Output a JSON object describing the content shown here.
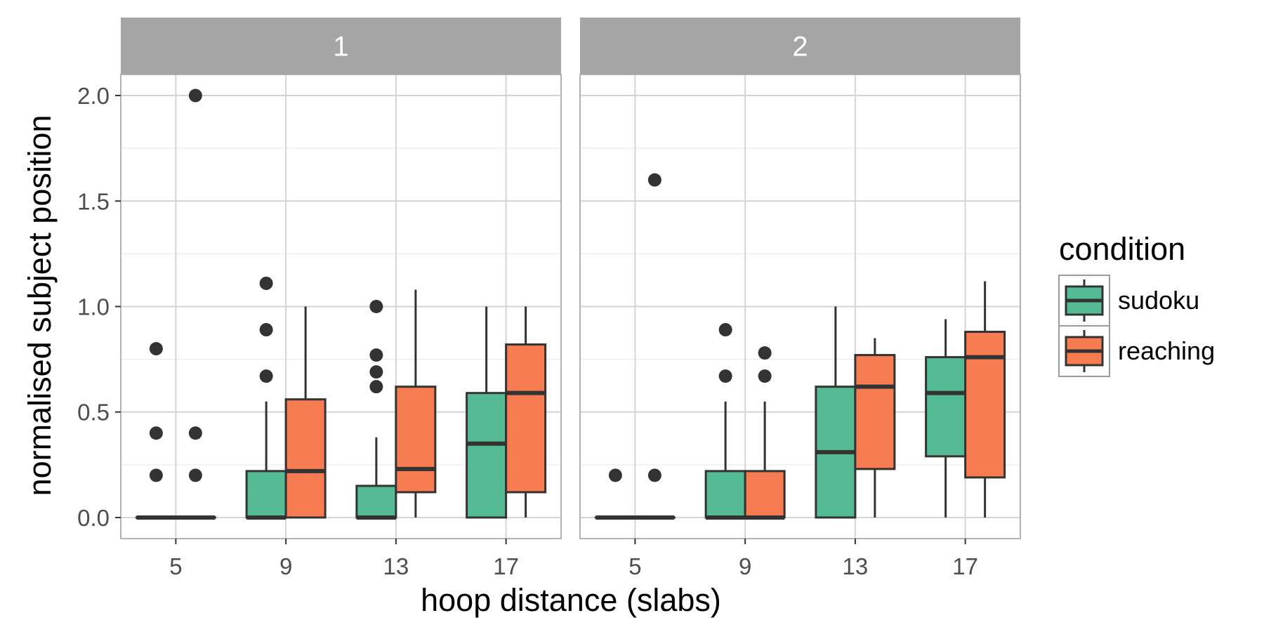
{
  "chart_data": {
    "type": "boxplot",
    "xlabel": "hoop distance (slabs)",
    "ylabel": "normalised subject position",
    "ylim": [
      -0.1,
      2.1
    ],
    "y_ticks": [
      "0.0",
      "0.5",
      "1.0",
      "1.5",
      "2.0"
    ],
    "categories": [
      "5",
      "9",
      "13",
      "17"
    ],
    "grid": true,
    "legend": {
      "title": "condition",
      "position": "right",
      "entries": [
        {
          "name": "sudoku",
          "color": "#55bb95"
        },
        {
          "name": "reaching",
          "color": "#f87c51"
        }
      ]
    },
    "facets": [
      {
        "label": "1",
        "boxes": [
          {
            "category": "5",
            "series": "sudoku",
            "lower_whisker": 0,
            "q1": 0,
            "median": 0,
            "q3": 0,
            "upper_whisker": 0,
            "outliers": [
              0.8,
              0.4,
              0.2
            ]
          },
          {
            "category": "5",
            "series": "reaching",
            "lower_whisker": 0,
            "q1": 0,
            "median": 0,
            "q3": 0,
            "upper_whisker": 0,
            "outliers": [
              2.0,
              0.4,
              0.2
            ]
          },
          {
            "category": "9",
            "series": "sudoku",
            "lower_whisker": 0,
            "q1": 0,
            "median": 0,
            "q3": 0.22,
            "upper_whisker": 0.55,
            "outliers": [
              1.11,
              0.89,
              0.67
            ]
          },
          {
            "category": "9",
            "series": "reaching",
            "lower_whisker": 0,
            "q1": 0,
            "median": 0.22,
            "q3": 0.56,
            "upper_whisker": 1.0,
            "outliers": []
          },
          {
            "category": "13",
            "series": "sudoku",
            "lower_whisker": 0,
            "q1": 0,
            "median": 0,
            "q3": 0.15,
            "upper_whisker": 0.38,
            "outliers": [
              1.0,
              0.77,
              0.69,
              0.62
            ]
          },
          {
            "category": "13",
            "series": "reaching",
            "lower_whisker": 0,
            "q1": 0.12,
            "median": 0.23,
            "q3": 0.62,
            "upper_whisker": 1.08,
            "outliers": []
          },
          {
            "category": "17",
            "series": "sudoku",
            "lower_whisker": 0,
            "q1": 0,
            "median": 0.35,
            "q3": 0.59,
            "upper_whisker": 1.0,
            "outliers": []
          },
          {
            "category": "17",
            "series": "reaching",
            "lower_whisker": 0,
            "q1": 0.12,
            "median": 0.59,
            "q3": 0.82,
            "upper_whisker": 1.0,
            "outliers": []
          }
        ]
      },
      {
        "label": "2",
        "boxes": [
          {
            "category": "5",
            "series": "sudoku",
            "lower_whisker": 0,
            "q1": 0,
            "median": 0,
            "q3": 0,
            "upper_whisker": 0,
            "outliers": [
              0.2
            ]
          },
          {
            "category": "5",
            "series": "reaching",
            "lower_whisker": 0,
            "q1": 0,
            "median": 0,
            "q3": 0,
            "upper_whisker": 0,
            "outliers": [
              1.6,
              0.2
            ]
          },
          {
            "category": "9",
            "series": "sudoku",
            "lower_whisker": 0,
            "q1": 0,
            "median": 0,
            "q3": 0.22,
            "upper_whisker": 0.55,
            "outliers": [
              0.89,
              0.67
            ]
          },
          {
            "category": "9",
            "series": "reaching",
            "lower_whisker": 0,
            "q1": 0,
            "median": 0,
            "q3": 0.22,
            "upper_whisker": 0.55,
            "outliers": [
              0.78,
              0.67
            ]
          },
          {
            "category": "13",
            "series": "sudoku",
            "lower_whisker": 0,
            "q1": 0,
            "median": 0.31,
            "q3": 0.62,
            "upper_whisker": 1.0,
            "outliers": []
          },
          {
            "category": "13",
            "series": "reaching",
            "lower_whisker": 0,
            "q1": 0.23,
            "median": 0.62,
            "q3": 0.77,
            "upper_whisker": 0.85,
            "outliers": []
          },
          {
            "category": "17",
            "series": "sudoku",
            "lower_whisker": 0,
            "q1": 0.29,
            "median": 0.59,
            "q3": 0.76,
            "upper_whisker": 0.94,
            "outliers": []
          },
          {
            "category": "17",
            "series": "reaching",
            "lower_whisker": 0,
            "q1": 0.19,
            "median": 0.76,
            "q3": 0.88,
            "upper_whisker": 1.12,
            "outliers": []
          }
        ]
      }
    ]
  }
}
